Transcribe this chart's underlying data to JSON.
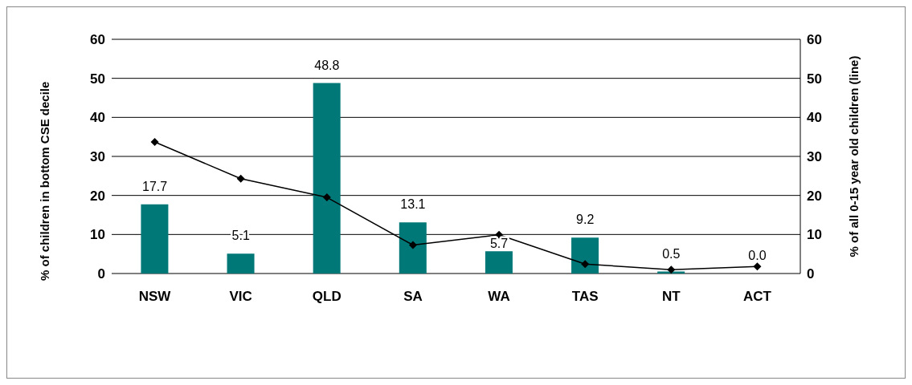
{
  "chart_data": {
    "type": "bar",
    "categories": [
      "NSW",
      "VIC",
      "QLD",
      "SA",
      "WA",
      "TAS",
      "NT",
      "ACT"
    ],
    "ylabel": "% of children in bottom CSE decile",
    "y2label": "% of all 0-15 year old children (line)",
    "series": [
      {
        "color": "#007878",
        "values": [
          17.7,
          5.1,
          48.8,
          13.1,
          5.7,
          9.2,
          0.5,
          0.0
        ],
        "value_labels": [
          "17.7",
          "5.1",
          "48.8",
          "13.1",
          "5.7",
          "9.2",
          "0.5",
          "0.0"
        ]
      },
      {
        "type": "line",
        "axis": "y2",
        "color": "#000000",
        "values": [
          33.7,
          24.3,
          19.5,
          7.3,
          9.9,
          2.4,
          1.0,
          1.8
        ]
      }
    ],
    "ylim": [
      0,
      60
    ],
    "yticks": [
      0,
      10,
      20,
      30,
      40,
      50,
      60
    ],
    "y2lim": [
      0,
      60
    ],
    "y2ticks": [
      0,
      10,
      20,
      30,
      40,
      50,
      60
    ],
    "grid": "y",
    "legend": false,
    "marker": "diamond",
    "line_style": "solid"
  }
}
